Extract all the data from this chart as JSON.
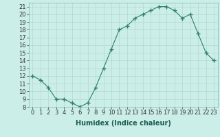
{
  "x": [
    0,
    1,
    2,
    3,
    4,
    5,
    6,
    7,
    8,
    9,
    10,
    11,
    12,
    13,
    14,
    15,
    16,
    17,
    18,
    19,
    20,
    21,
    22,
    23
  ],
  "y": [
    12,
    11.5,
    10.5,
    9,
    9,
    8.5,
    8,
    8.5,
    10.5,
    13,
    15.5,
    18,
    18.5,
    19.5,
    20,
    20.5,
    21,
    21,
    20.5,
    19.5,
    20,
    17.5,
    15,
    14
  ],
  "line_color": "#2e7d6e",
  "marker_color": "#2e7d6e",
  "bg_color": "#cceee8",
  "grid_color": "#b0d8d0",
  "xlabel": "Humidex (Indice chaleur)",
  "xlim": [
    -0.5,
    23.5
  ],
  "ylim": [
    8,
    21.5
  ],
  "xticks": [
    0,
    1,
    2,
    3,
    4,
    5,
    6,
    7,
    8,
    9,
    10,
    11,
    12,
    13,
    14,
    15,
    16,
    17,
    18,
    19,
    20,
    21,
    22,
    23
  ],
  "yticks": [
    8,
    9,
    10,
    11,
    12,
    13,
    14,
    15,
    16,
    17,
    18,
    19,
    20,
    21
  ],
  "label_fontsize": 7,
  "tick_fontsize": 6
}
